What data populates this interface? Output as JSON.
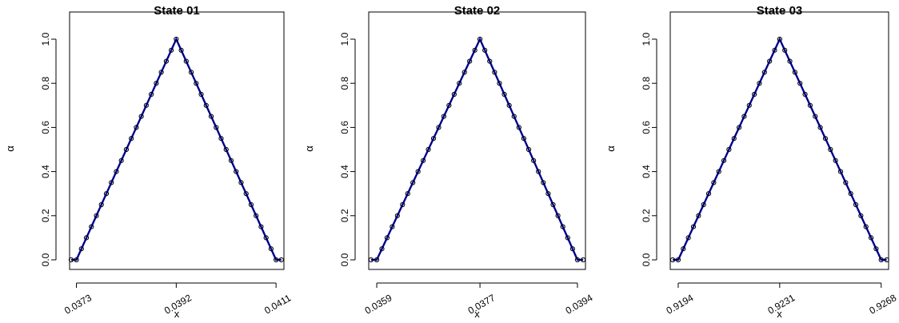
{
  "chart_data": [
    {
      "type": "line",
      "title": "State  01",
      "xlabel": "x",
      "ylabel": "α",
      "ylim": [
        0,
        1
      ],
      "yticks": [
        0.0,
        0.2,
        0.4,
        0.6,
        0.8,
        1.0
      ],
      "ytick_labels": [
        "0.0",
        "0.2",
        "0.4",
        "0.6",
        "0.8",
        "1.0"
      ],
      "xticks": [
        0.0373,
        0.0392,
        0.0411
      ],
      "xtick_labels": [
        "0.0373",
        "0.0392",
        "0.0411"
      ],
      "xlim": [
        0.03717,
        0.04125
      ],
      "series": [
        {
          "style": "line",
          "color": "#0000cd",
          "x": [
            0.0372,
            0.0373,
            0.0392,
            0.0411,
            0.0412
          ],
          "y": [
            0,
            0,
            1,
            0,
            0
          ]
        },
        {
          "style": "points",
          "color": "#000000",
          "x": [
            0.0372,
            0.0373,
            0.0392,
            0.0411,
            0.0412
          ],
          "y": [
            0,
            0,
            1,
            0,
            0
          ],
          "levels": [
            0,
            0.05,
            0.1,
            0.15,
            0.2,
            0.25,
            0.3,
            0.35,
            0.4,
            0.45,
            0.5,
            0.55,
            0.6,
            0.65,
            0.7,
            0.75,
            0.8,
            0.85,
            0.9,
            0.95,
            1
          ]
        }
      ]
    },
    {
      "type": "line",
      "title": "State  02",
      "xlabel": "x",
      "ylabel": "α",
      "ylim": [
        0,
        1
      ],
      "yticks": [
        0.0,
        0.2,
        0.4,
        0.6,
        0.8,
        1.0
      ],
      "ytick_labels": [
        "0.0",
        "0.2",
        "0.4",
        "0.6",
        "0.8",
        "1.0"
      ],
      "xticks": [
        0.0359,
        0.0377,
        0.0394
      ],
      "xtick_labels": [
        "0.0359",
        "0.0377",
        "0.0394"
      ],
      "xlim": [
        0.03576,
        0.03954
      ],
      "series": [
        {
          "style": "line",
          "color": "#0000cd",
          "x": [
            0.0358,
            0.0359,
            0.0377,
            0.0394,
            0.0395
          ],
          "y": [
            0,
            0,
            1,
            0,
            0
          ]
        },
        {
          "style": "points",
          "color": "#000000",
          "x": [
            0.0358,
            0.0359,
            0.0377,
            0.0394,
            0.0395
          ],
          "y": [
            0,
            0,
            1,
            0,
            0
          ],
          "levels": [
            0,
            0.05,
            0.1,
            0.15,
            0.2,
            0.25,
            0.3,
            0.35,
            0.4,
            0.45,
            0.5,
            0.55,
            0.6,
            0.65,
            0.7,
            0.75,
            0.8,
            0.85,
            0.9,
            0.95,
            1
          ]
        }
      ]
    },
    {
      "type": "line",
      "title": "State  03",
      "xlabel": "x",
      "ylabel": "α",
      "ylim": [
        0,
        1
      ],
      "yticks": [
        0.0,
        0.2,
        0.4,
        0.6,
        0.8,
        1.0
      ],
      "ytick_labels": [
        "0.0",
        "0.2",
        "0.4",
        "0.6",
        "0.8",
        "1.0"
      ],
      "xticks": [
        0.9194,
        0.9231,
        0.9268
      ],
      "xtick_labels": [
        "0.9194",
        "0.9231",
        "0.9268"
      ],
      "xlim": [
        0.91911,
        0.92707
      ],
      "series": [
        {
          "style": "line",
          "color": "#0000cd",
          "x": [
            0.9192,
            0.9194,
            0.9231,
            0.9268,
            0.927
          ],
          "y": [
            0,
            0,
            1,
            0,
            0
          ]
        },
        {
          "style": "points",
          "color": "#000000",
          "x": [
            0.9192,
            0.9194,
            0.9231,
            0.9268,
            0.927
          ],
          "y": [
            0,
            0,
            1,
            0,
            0
          ],
          "levels": [
            0,
            0.05,
            0.1,
            0.15,
            0.2,
            0.25,
            0.3,
            0.35,
            0.4,
            0.45,
            0.5,
            0.55,
            0.6,
            0.65,
            0.7,
            0.75,
            0.8,
            0.85,
            0.9,
            0.95,
            1
          ]
        }
      ]
    }
  ]
}
